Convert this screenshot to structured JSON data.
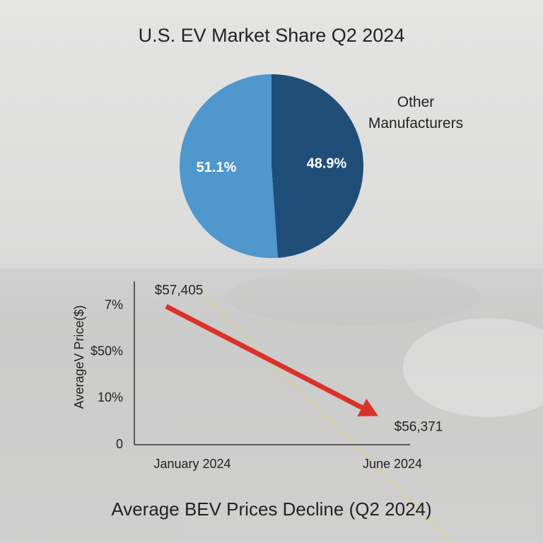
{
  "chart_data": [
    {
      "type": "pie",
      "title": "U.S. EV Market Share Q2 2024",
      "categories": [
        null,
        "Other Manufacturers"
      ],
      "values": [
        51.1,
        48.9
      ],
      "value_labels": [
        "51.1%",
        "48.9%"
      ],
      "colors": [
        "#4f97cc",
        "#1f4e79"
      ]
    },
    {
      "type": "line",
      "title": "Average BEV Prices Decline (Q2 2024)",
      "ylabel": "AverageV Price($)",
      "y_labels": [
        "0",
        "10%",
        "$50%",
        "7%"
      ],
      "categories": [
        "January 2024",
        "June 2024"
      ],
      "values": [
        57405,
        56371
      ],
      "value_labels": [
        "$57,405",
        "$56,371"
      ],
      "ylim": [
        56100,
        57640
      ],
      "color": "#d9322b"
    }
  ]
}
